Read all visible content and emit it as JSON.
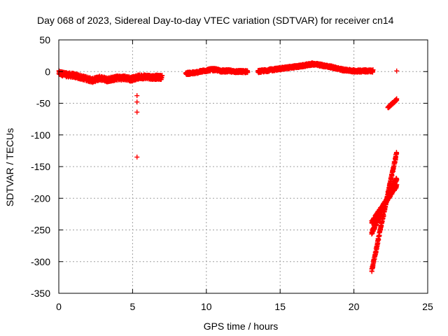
{
  "chart_data": {
    "type": "scatter",
    "title": "Day 068 of 2023, Sidereal Day-to-day VTEC variation (SDTVAR) for receiver cn14",
    "xlabel": "GPS time / hours",
    "ylabel": "SDTVAR / TECUs",
    "xlim": [
      0,
      25
    ],
    "ylim": [
      -350,
      50
    ],
    "xticks": [
      0,
      5,
      10,
      15,
      20,
      25
    ],
    "yticks": [
      50,
      0,
      -50,
      -100,
      -150,
      -200,
      -250,
      -300,
      -350
    ],
    "grid": true,
    "marker": "+",
    "color": "#ff0000",
    "segments": [
      {
        "name": "dense-early",
        "x_start": 0.0,
        "x_end": 7.0,
        "y_profile": [
          [
            0.0,
            -2
          ],
          [
            0.5,
            -5
          ],
          [
            1.0,
            -6
          ],
          [
            1.5,
            -9
          ],
          [
            2.0,
            -12
          ],
          [
            2.3,
            -14
          ],
          [
            2.8,
            -10
          ],
          [
            3.3,
            -13
          ],
          [
            4.0,
            -10
          ],
          [
            4.5,
            -10
          ],
          [
            4.9,
            -12
          ],
          [
            5.3,
            -9
          ],
          [
            5.8,
            -8
          ],
          [
            6.3,
            -9
          ],
          [
            7.0,
            -9
          ]
        ],
        "spread": 7
      },
      {
        "name": "dense-mid",
        "x_start": 8.6,
        "x_end": 12.8,
        "y_profile": [
          [
            8.6,
            -3
          ],
          [
            9.2,
            -2
          ],
          [
            9.8,
            1
          ],
          [
            10.3,
            3
          ],
          [
            10.6,
            3
          ],
          [
            11.0,
            1
          ],
          [
            11.5,
            1
          ],
          [
            12.0,
            0
          ],
          [
            12.8,
            0
          ]
        ],
        "spread": 4
      },
      {
        "name": "dense-late",
        "x_start": 13.5,
        "x_end": 21.3,
        "y_profile": [
          [
            13.5,
            0
          ],
          [
            14.5,
            3
          ],
          [
            15.5,
            6
          ],
          [
            16.5,
            9
          ],
          [
            17.2,
            12
          ],
          [
            17.8,
            10
          ],
          [
            18.5,
            7
          ],
          [
            19.2,
            3
          ],
          [
            20.0,
            1
          ],
          [
            21.3,
            1
          ]
        ],
        "spread": 4
      },
      {
        "name": "ramp-a",
        "x_start": 21.2,
        "x_end": 22.9,
        "y_profile": [
          [
            21.2,
            -315
          ],
          [
            22.9,
            -127
          ]
        ],
        "spread": 6
      },
      {
        "name": "ramp-b",
        "x_start": 21.2,
        "x_end": 22.9,
        "y_profile": [
          [
            21.2,
            -255
          ],
          [
            22.9,
            -168
          ]
        ],
        "spread": 7
      },
      {
        "name": "ramp-c",
        "x_start": 21.2,
        "x_end": 22.9,
        "y_profile": [
          [
            21.2,
            -238
          ],
          [
            22.9,
            -180
          ]
        ],
        "spread": 5
      },
      {
        "name": "short-line",
        "x_start": 22.3,
        "x_end": 22.9,
        "y_profile": [
          [
            22.3,
            -57
          ],
          [
            22.9,
            -44
          ]
        ],
        "spread": 3
      }
    ],
    "outliers": [
      {
        "x": 5.3,
        "y": -38
      },
      {
        "x": 5.3,
        "y": -48
      },
      {
        "x": 5.3,
        "y": -64
      },
      {
        "x": 5.3,
        "y": -135
      },
      {
        "x": 22.9,
        "y": 1
      }
    ]
  }
}
